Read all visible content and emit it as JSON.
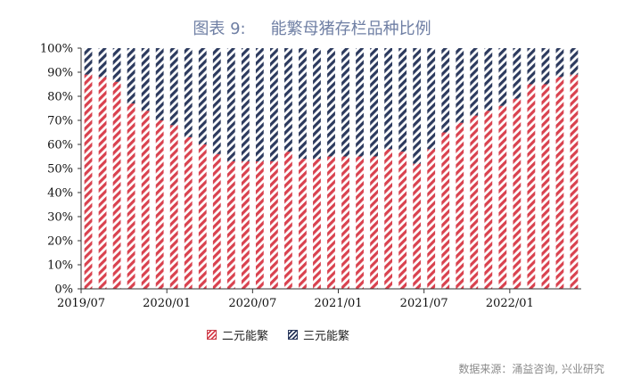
{
  "chart_data": {
    "type": "bar",
    "stacked": true,
    "title_prefix": "图表 9:",
    "title": "能繁母猪存栏品种比例",
    "xlabel": "",
    "ylabel": "",
    "ylim": [
      0,
      100
    ],
    "y_ticks": [
      "0%",
      "10%",
      "20%",
      "30%",
      "40%",
      "50%",
      "60%",
      "70%",
      "80%",
      "90%",
      "100%"
    ],
    "x_tick_labels": [
      {
        "index": 0,
        "label": "2019/07"
      },
      {
        "index": 6,
        "label": "2020/01"
      },
      {
        "index": 12,
        "label": "2020/07"
      },
      {
        "index": 18,
        "label": "2021/01"
      },
      {
        "index": 24,
        "label": "2021/07"
      },
      {
        "index": 30,
        "label": "2022/01"
      }
    ],
    "categories": [
      "2019/07",
      "2019/08",
      "2019/09",
      "2019/10",
      "2019/11",
      "2019/12",
      "2020/01",
      "2020/02",
      "2020/03",
      "2020/04",
      "2020/05",
      "2020/06",
      "2020/07",
      "2020/08",
      "2020/09",
      "2020/10",
      "2020/11",
      "2020/12",
      "2021/01",
      "2021/02",
      "2021/03",
      "2021/04",
      "2021/05",
      "2021/06",
      "2021/07",
      "2021/08",
      "2021/09",
      "2021/10",
      "2021/11",
      "2021/12",
      "2022/01",
      "2022/02",
      "2022/03",
      "2022/04",
      "2022/05"
    ],
    "series": [
      {
        "name": "二元能繁",
        "values": [
          89,
          88,
          86,
          77,
          74,
          70,
          68,
          63,
          60,
          56,
          53,
          53,
          53,
          53,
          57,
          54,
          54,
          55,
          55,
          55,
          55,
          58,
          57,
          52,
          58,
          65,
          69,
          72,
          74,
          76,
          79,
          85,
          85,
          88,
          89
        ]
      },
      {
        "name": "三元能繁",
        "values": [
          11,
          12,
          14,
          23,
          26,
          30,
          32,
          37,
          40,
          44,
          47,
          47,
          47,
          47,
          43,
          46,
          46,
          45,
          45,
          45,
          45,
          42,
          43,
          48,
          42,
          35,
          31,
          28,
          26,
          24,
          21,
          15,
          15,
          12,
          11
        ]
      }
    ],
    "colors": {
      "series1": "#d9424f",
      "series2": "#2c3a5e",
      "axis": "#333333"
    },
    "legend_position": "bottom-left",
    "grid": false
  },
  "source": "数据来源：涌益咨询, 兴业研究"
}
